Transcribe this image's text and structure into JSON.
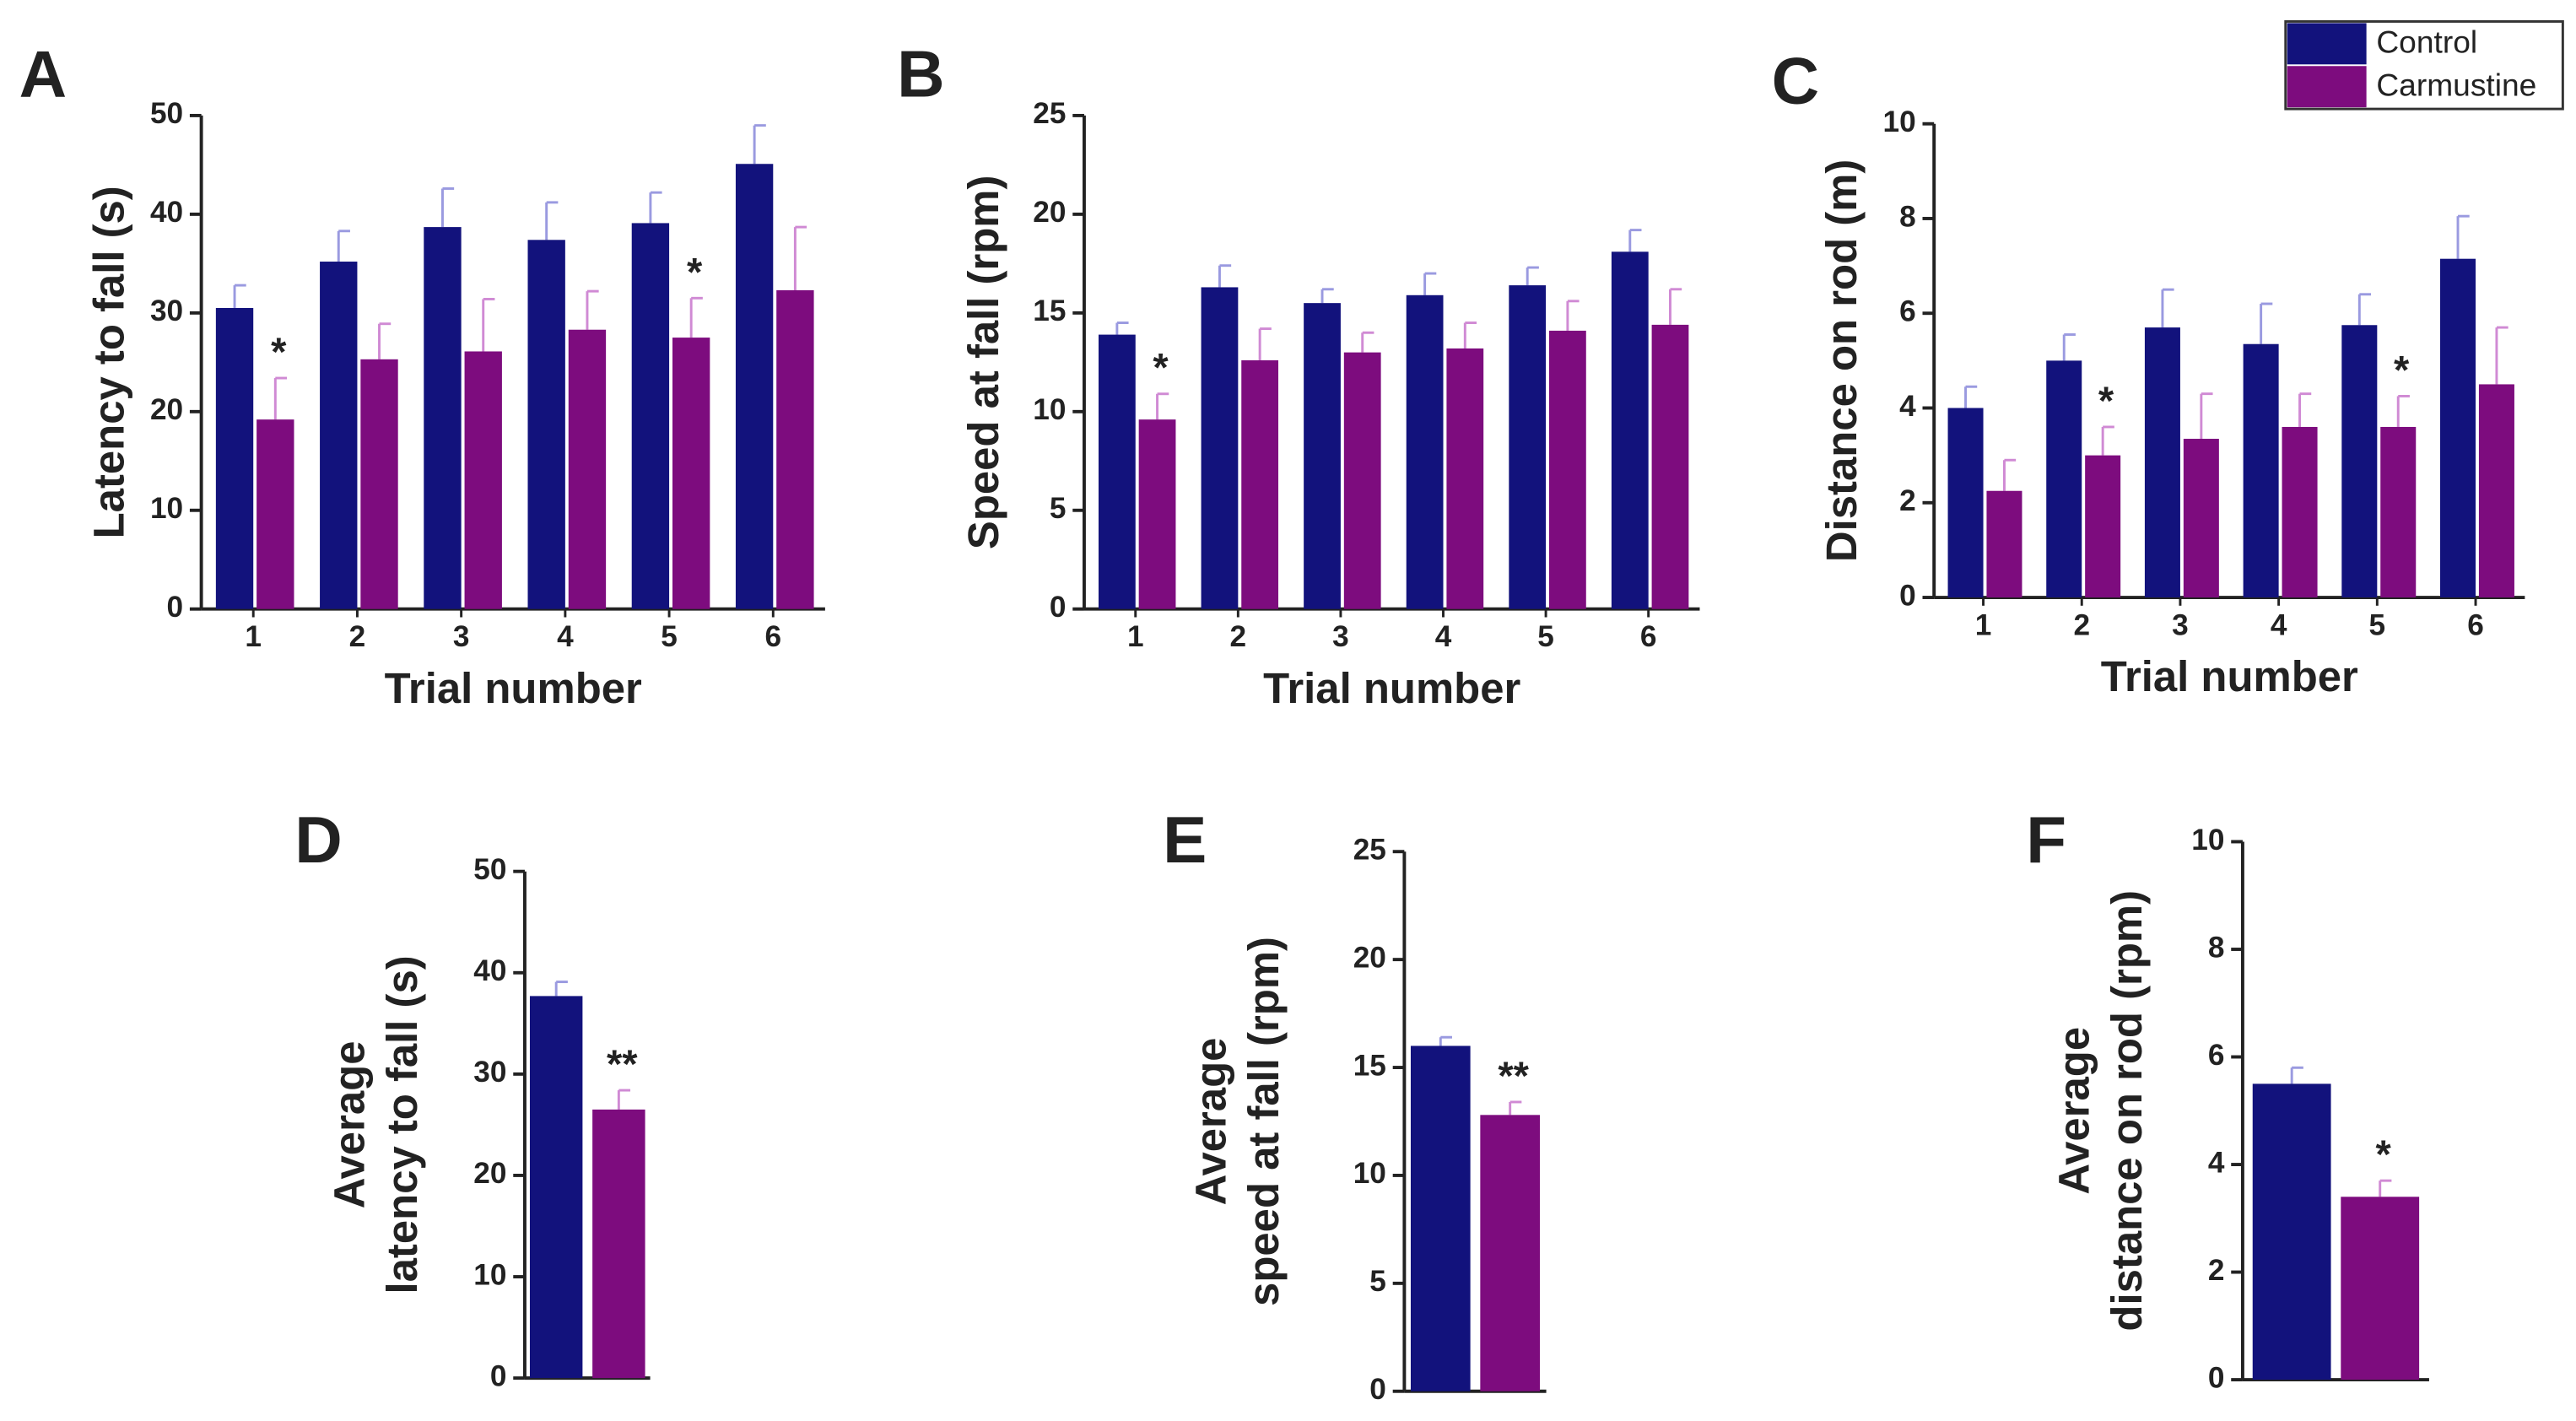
{
  "chart_data": [
    {
      "type": "bar",
      "panel_label": "A",
      "ylabel": "Latency to fall (s)",
      "xlabel": "Trial number",
      "categories": [
        "1",
        "2",
        "3",
        "4",
        "5",
        "6"
      ],
      "series": [
        {
          "color": "#12127c",
          "values": [
            30.5,
            35.2,
            38.7,
            37.4,
            39.1,
            45.1
          ],
          "errors": [
            2.3,
            3.1,
            3.9,
            3.8,
            3.1,
            3.9
          ]
        },
        {
          "color": "#7d0c7e",
          "values": [
            19.2,
            25.3,
            26.1,
            28.3,
            27.5,
            32.3
          ],
          "errors": [
            4.2,
            3.6,
            5.3,
            3.9,
            4.0,
            6.4
          ]
        }
      ],
      "annotations": [
        {
          "text": "*",
          "index": 0
        },
        {
          "text": "*",
          "index": 4
        }
      ],
      "ylim": [
        0,
        50
      ],
      "yticks": [
        0,
        10,
        20,
        30,
        40,
        50
      ]
    },
    {
      "type": "bar",
      "panel_label": "B",
      "ylabel": "Speed at fall (rpm)",
      "xlabel": "Trial number",
      "categories": [
        "1",
        "2",
        "3",
        "4",
        "5",
        "6"
      ],
      "series": [
        {
          "color": "#12127c",
          "values": [
            13.9,
            16.3,
            15.5,
            15.9,
            16.4,
            18.1
          ],
          "errors": [
            0.6,
            1.1,
            0.7,
            1.1,
            0.9,
            1.1
          ]
        },
        {
          "color": "#7d0c7e",
          "values": [
            9.6,
            12.6,
            13.0,
            13.2,
            14.1,
            14.4
          ],
          "errors": [
            1.3,
            1.6,
            1.0,
            1.3,
            1.5,
            1.8
          ]
        }
      ],
      "annotations": [
        {
          "text": "*",
          "index": 0
        }
      ],
      "ylim": [
        0,
        25
      ],
      "yticks": [
        0,
        5,
        10,
        15,
        20,
        25
      ]
    },
    {
      "type": "bar",
      "panel_label": "C",
      "ylabel": "Distance on rod (m)",
      "xlabel": "Trial number",
      "categories": [
        "1",
        "2",
        "3",
        "4",
        "5",
        "6"
      ],
      "series": [
        {
          "name": "Control",
          "color": "#12127c",
          "values": [
            4.0,
            5.0,
            5.7,
            5.35,
            5.75,
            7.15
          ],
          "errors": [
            0.45,
            0.55,
            0.8,
            0.85,
            0.65,
            0.9
          ]
        },
        {
          "name": "Carmustine",
          "color": "#7d0c7e",
          "values": [
            2.25,
            3.0,
            3.35,
            3.6,
            3.6,
            4.5
          ],
          "errors": [
            0.65,
            0.6,
            0.95,
            0.7,
            0.65,
            1.2
          ]
        }
      ],
      "annotations": [
        {
          "text": "*",
          "index": 1
        },
        {
          "text": "*",
          "index": 4
        }
      ],
      "ylim": [
        0,
        10
      ],
      "yticks": [
        0,
        2,
        4,
        6,
        8,
        10
      ]
    },
    {
      "type": "bar",
      "panel_label": "D",
      "ylabel": [
        "Average",
        "latency to fall (s)"
      ],
      "series": [
        {
          "color": "#12127c",
          "values": [
            37.7
          ],
          "errors": [
            1.4
          ]
        },
        {
          "color": "#7d0c7e",
          "values": [
            26.5
          ],
          "errors": [
            1.9
          ]
        }
      ],
      "annotations": [
        {
          "text": "**",
          "index": 0
        }
      ],
      "ylim": [
        0,
        50
      ],
      "yticks": [
        0,
        10,
        20,
        30,
        40,
        50
      ]
    },
    {
      "type": "bar",
      "panel_label": "E",
      "ylabel": [
        "Average",
        "speed at fall (rpm)"
      ],
      "series": [
        {
          "color": "#12127c",
          "values": [
            16.0
          ],
          "errors": [
            0.4
          ]
        },
        {
          "color": "#7d0c7e",
          "values": [
            12.8
          ],
          "errors": [
            0.6
          ]
        }
      ],
      "annotations": [
        {
          "text": "**",
          "index": 0
        }
      ],
      "ylim": [
        0,
        25
      ],
      "yticks": [
        0,
        5,
        10,
        15,
        20,
        25
      ]
    },
    {
      "type": "bar",
      "panel_label": "F",
      "ylabel": [
        "Average",
        "distance on rod (rpm)"
      ],
      "series": [
        {
          "color": "#12127c",
          "values": [
            5.5
          ],
          "errors": [
            0.3
          ]
        },
        {
          "color": "#7d0c7e",
          "values": [
            3.4
          ],
          "errors": [
            0.3
          ]
        }
      ],
      "annotations": [
        {
          "text": "*",
          "index": 0
        }
      ],
      "ylim": [
        0,
        10
      ],
      "yticks": [
        0,
        2,
        4,
        6,
        8,
        10
      ]
    }
  ]
}
